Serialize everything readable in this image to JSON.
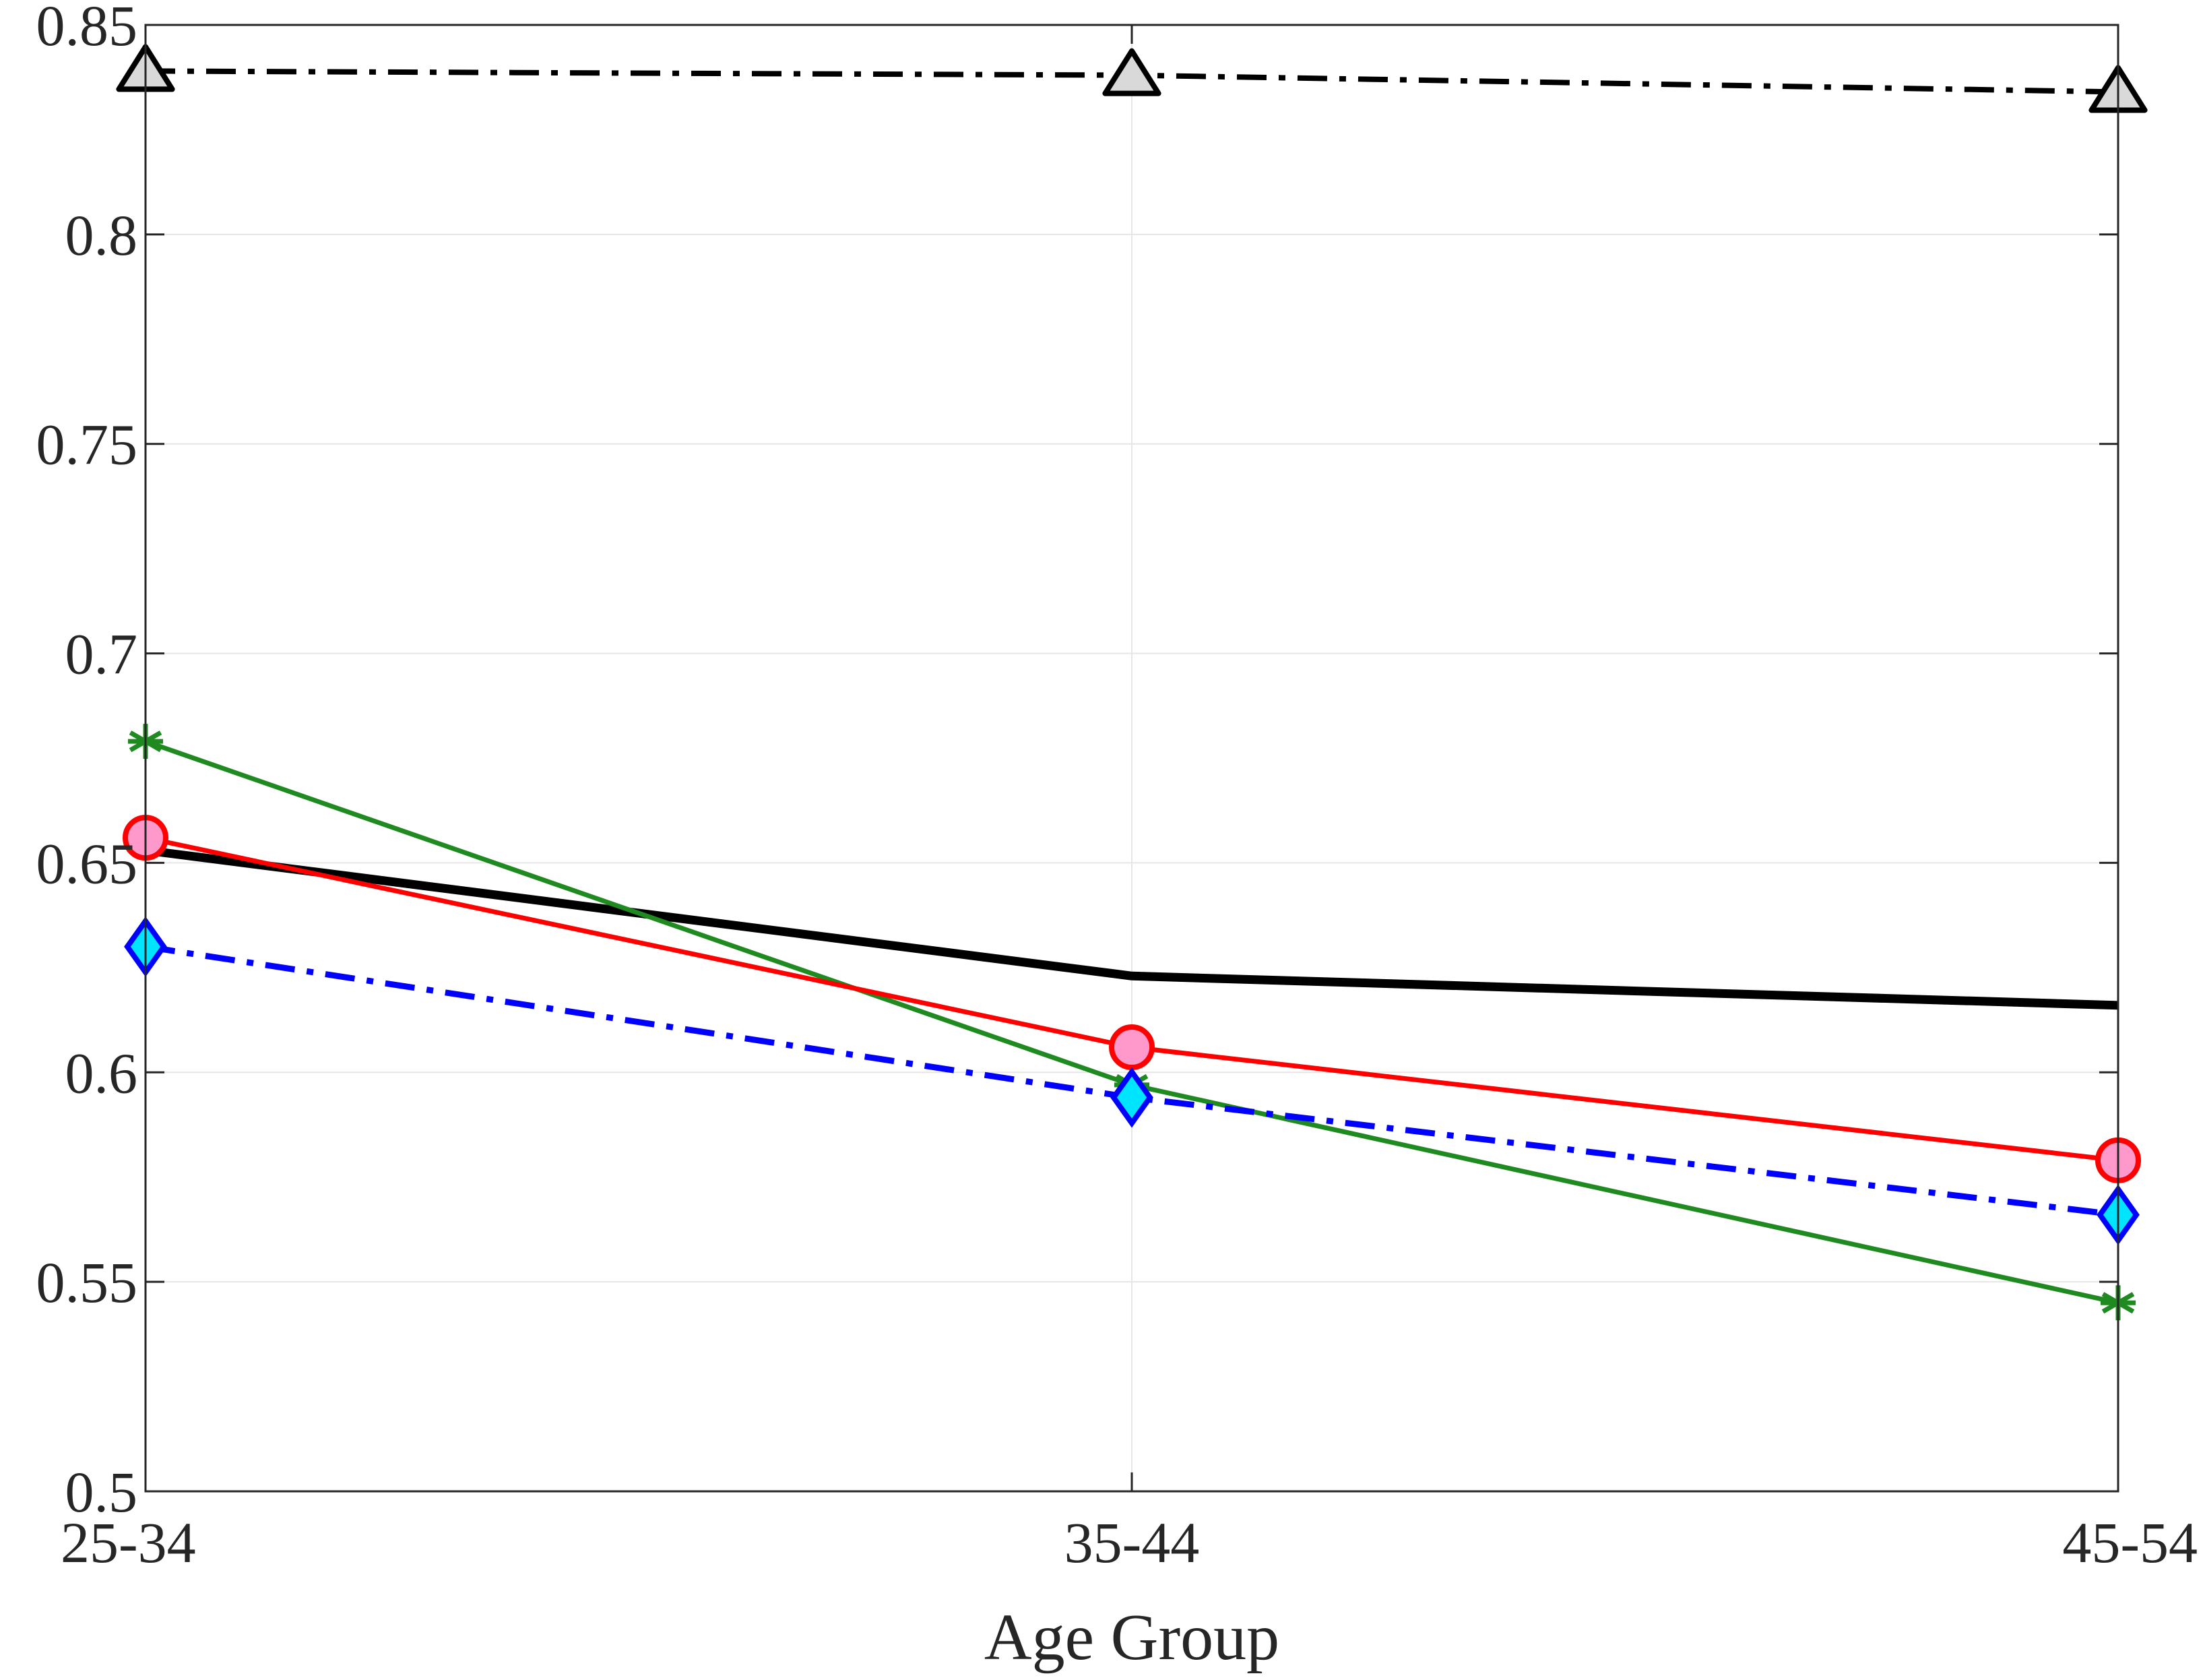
{
  "chart_data": {
    "type": "line",
    "xlabel": "Age Group",
    "ylabel": "",
    "categories": [
      "25-34",
      "35-44",
      "45-54"
    ],
    "ylim": [
      0.5,
      0.85
    ],
    "yticks": [
      0.5,
      0.55,
      0.6,
      0.65,
      0.7,
      0.75,
      0.8,
      0.85
    ],
    "ytick_labels": [
      "0.5",
      "0.55",
      "0.6",
      "0.65",
      "0.7",
      "0.75",
      "0.8",
      "0.85"
    ],
    "grid": true,
    "series": [
      {
        "values": [
          0.839,
          0.838,
          0.834
        ],
        "color": "#000000",
        "line": "dashdot",
        "marker": "triangle",
        "marker_fill": "#d9d9d9",
        "marker_edge": "#000000"
      },
      {
        "values": [
          0.653,
          0.623,
          0.616
        ],
        "color": "#000000",
        "line": "solid-thick",
        "marker": "none"
      },
      {
        "values": [
          0.679,
          0.597,
          0.545
        ],
        "color": "#1f8a1f",
        "line": "solid",
        "marker": "asterisk",
        "marker_fill": "#1f8a1f",
        "marker_edge": "#1f8a1f"
      },
      {
        "values": [
          0.656,
          0.606,
          0.579
        ],
        "color": "#ff0000",
        "line": "solid",
        "marker": "circle",
        "marker_fill": "#ff99cc",
        "marker_edge": "#ff0000"
      },
      {
        "values": [
          0.63,
          0.594,
          0.566
        ],
        "color": "#0000ff",
        "line": "dashdot",
        "marker": "diamond",
        "marker_fill": "#00e5ff",
        "marker_edge": "#0000ff"
      }
    ]
  }
}
